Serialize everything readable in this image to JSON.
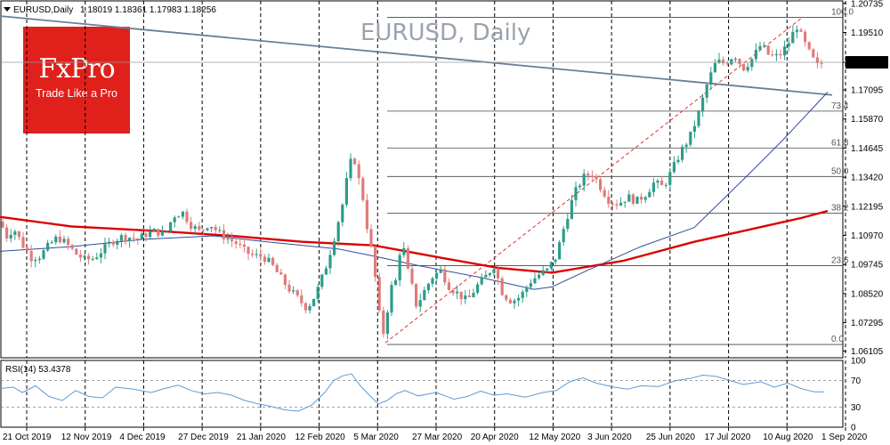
{
  "header": {
    "symbol": "EURUSD,Daily",
    "ohlc": "1.18019 1.18361 1.17983 1.18256",
    "watermark": "EURUSD, Daily"
  },
  "logo": {
    "brand": "FxPro",
    "tagline": "Trade Like a Pro"
  },
  "rsi_panel": {
    "label": "RSI(14) 53.4378"
  },
  "colors": {
    "up": "#2e9c8a",
    "down": "#e07b7b",
    "ma_slow": "#dd0000",
    "ma_fast": "#2a4f97",
    "trendline": "#6a7f95",
    "fib": "#444444",
    "dashed_trend": "#e03030",
    "rsi": "#5b9bd5",
    "logo_bg": "#e0201b"
  },
  "chart_data": [
    {
      "type": "candlestick",
      "title": "EURUSD, Daily",
      "ylim": [
        1.0582,
        1.2084
      ],
      "yticks": [
        "1.20735",
        "1.19510",
        "1.18256",
        "1.17095",
        "1.15870",
        "1.14645",
        "1.13420",
        "1.12195",
        "1.10970",
        "1.09745",
        "1.08520",
        "1.07295",
        "1.06105"
      ],
      "current_price": "1.18256",
      "x_labels": [
        "21 Oct 2019",
        "12 Nov 2019",
        "4 Dec 2019",
        "27 Dec 2019",
        "21 Jan 2020",
        "12 Feb 2020",
        "5 Mar 2020",
        "27 Mar 2020",
        "20 Apr 2020",
        "12 May 2020",
        "3 Jun 2020",
        "25 Jun 2020",
        "17 Jul 2020",
        "10 Aug 2020",
        "1 Sep 2020"
      ],
      "close_series": [
        [
          0,
          1.1155
        ],
        [
          8,
          1.109
        ],
        [
          15,
          1.113
        ],
        [
          25,
          1.106
        ],
        [
          35,
          1.1005
        ],
        [
          45,
          1.101
        ],
        [
          55,
          1.1055
        ],
        [
          65,
          1.109
        ],
        [
          75,
          1.106
        ],
        [
          85,
          1.102
        ],
        [
          95,
          1.0995
        ],
        [
          105,
          1.1
        ],
        [
          115,
          1.1035
        ],
        [
          125,
          1.107
        ],
        [
          135,
          1.109
        ],
        [
          145,
          1.109
        ],
        [
          155,
          1.108
        ],
        [
          165,
          1.1105
        ],
        [
          175,
          1.1115
        ],
        [
          185,
          1.11
        ],
        [
          195,
          1.118
        ],
        [
          205,
          1.1195
        ],
        [
          215,
          1.114
        ],
        [
          225,
          1.111
        ],
        [
          235,
          1.115
        ],
        [
          245,
          1.111
        ],
        [
          255,
          1.1085
        ],
        [
          265,
          1.1065
        ],
        [
          275,
          1.103
        ],
        [
          285,
          1.101
        ],
        [
          295,
          1.101
        ],
        [
          305,
          1.0975
        ],
        [
          315,
          1.092
        ],
        [
          325,
          1.087
        ],
        [
          335,
          1.083
        ],
        [
          345,
          1.079
        ],
        [
          355,
          1.085
        ],
        [
          365,
          1.095
        ],
        [
          375,
          1.108
        ],
        [
          385,
          1.123
        ],
        [
          392,
          1.138
        ],
        [
          397,
          1.144
        ],
        [
          402,
          1.135
        ],
        [
          408,
          1.125
        ],
        [
          413,
          1.112
        ],
        [
          418,
          1.102
        ],
        [
          423,
          1.088
        ],
        [
          428,
          1.07
        ],
        [
          433,
          1.068
        ],
        [
          438,
          1.09
        ],
        [
          443,
          1.085
        ],
        [
          448,
          1.102
        ],
        [
          453,
          1.105
        ],
        [
          458,
          1.095
        ],
        [
          463,
          1.088
        ],
        [
          468,
          1.08
        ],
        [
          475,
          1.085
        ],
        [
          485,
          1.092
        ],
        [
          495,
          1.095
        ],
        [
          505,
          1.088
        ],
        [
          515,
          1.085
        ],
        [
          525,
          1.082
        ],
        [
          535,
          1.088
        ],
        [
          545,
          1.092
        ],
        [
          555,
          1.097
        ],
        [
          565,
          1.085
        ],
        [
          575,
          1.082
        ],
        [
          585,
          1.084
        ],
        [
          595,
          1.09
        ],
        [
          605,
          1.093
        ],
        [
          615,
          1.095
        ],
        [
          625,
          1.101
        ],
        [
          635,
          1.115
        ],
        [
          645,
          1.127
        ],
        [
          655,
          1.134
        ],
        [
          665,
          1.136
        ],
        [
          675,
          1.13
        ],
        [
          685,
          1.124
        ],
        [
          695,
          1.123
        ],
        [
          705,
          1.126
        ],
        [
          715,
          1.124
        ],
        [
          725,
          1.127
        ],
        [
          735,
          1.132
        ],
        [
          745,
          1.13
        ],
        [
          755,
          1.137
        ],
        [
          765,
          1.145
        ],
        [
          775,
          1.151
        ],
        [
          785,
          1.161
        ],
        [
          795,
          1.174
        ],
        [
          805,
          1.183
        ],
        [
          815,
          1.182
        ],
        [
          825,
          1.186
        ],
        [
          835,
          1.18
        ],
        [
          845,
          1.184
        ],
        [
          855,
          1.19
        ],
        [
          865,
          1.185
        ],
        [
          875,
          1.185
        ],
        [
          885,
          1.19
        ],
        [
          895,
          1.198
        ],
        [
          902,
          1.192
        ],
        [
          910,
          1.186
        ],
        [
          918,
          1.181
        ],
        [
          926,
          1.1826
        ]
      ],
      "ma_slow": [
        [
          0,
          1.1175
        ],
        [
          80,
          1.1135
        ],
        [
          180,
          1.1115
        ],
        [
          260,
          1.1095
        ],
        [
          340,
          1.107
        ],
        [
          420,
          1.1055
        ],
        [
          500,
          1.1
        ],
        [
          560,
          1.096
        ],
        [
          620,
          1.094
        ],
        [
          700,
          1.099
        ],
        [
          780,
          1.107
        ],
        [
          840,
          1.112
        ],
        [
          900,
          1.117
        ],
        [
          930,
          1.12
        ]
      ],
      "ma_fast": [
        [
          0,
          1.103
        ],
        [
          80,
          1.105
        ],
        [
          160,
          1.108
        ],
        [
          240,
          1.1095
        ],
        [
          300,
          1.107
        ],
        [
          380,
          1.104
        ],
        [
          420,
          1.101
        ],
        [
          470,
          1.097
        ],
        [
          540,
          1.092
        ],
        [
          600,
          1.087
        ],
        [
          620,
          1.088
        ],
        [
          660,
          1.095
        ],
        [
          720,
          1.105
        ],
        [
          780,
          1.113
        ],
        [
          840,
          1.135
        ],
        [
          880,
          1.15
        ],
        [
          910,
          1.162
        ],
        [
          930,
          1.17
        ]
      ],
      "fibonacci": [
        {
          "level": "100.0",
          "price": 1.2015
        },
        {
          "level": "73.4",
          "price": 1.162
        },
        {
          "level": "61.8",
          "price": 1.1465
        },
        {
          "level": "50.0",
          "price": 1.1345
        },
        {
          "level": "38.2",
          "price": 1.119
        },
        {
          "level": "23.6",
          "price": 1.097
        },
        {
          "level": "0.0",
          "price": 1.0638
        }
      ]
    },
    {
      "type": "line",
      "title": "RSI(14) 53.4378",
      "ylim": [
        0,
        100
      ],
      "yticks": [
        "100",
        "70",
        "30",
        "0"
      ],
      "levels": [
        70,
        30
      ],
      "values": [
        [
          0,
          58
        ],
        [
          15,
          60
        ],
        [
          25,
          52
        ],
        [
          40,
          62
        ],
        [
          55,
          46
        ],
        [
          70,
          40
        ],
        [
          85,
          55
        ],
        [
          100,
          46
        ],
        [
          115,
          44
        ],
        [
          130,
          60
        ],
        [
          150,
          57
        ],
        [
          170,
          52
        ],
        [
          185,
          58
        ],
        [
          200,
          63
        ],
        [
          215,
          55
        ],
        [
          230,
          50
        ],
        [
          245,
          52
        ],
        [
          260,
          48
        ],
        [
          275,
          40
        ],
        [
          290,
          35
        ],
        [
          305,
          31
        ],
        [
          320,
          26
        ],
        [
          335,
          24
        ],
        [
          350,
          33
        ],
        [
          365,
          52
        ],
        [
          375,
          70
        ],
        [
          385,
          77
        ],
        [
          395,
          80
        ],
        [
          405,
          62
        ],
        [
          415,
          48
        ],
        [
          425,
          35
        ],
        [
          435,
          40
        ],
        [
          445,
          50
        ],
        [
          455,
          55
        ],
        [
          470,
          47
        ],
        [
          490,
          52
        ],
        [
          510,
          42
        ],
        [
          525,
          46
        ],
        [
          540,
          54
        ],
        [
          555,
          48
        ],
        [
          570,
          50
        ],
        [
          590,
          45
        ],
        [
          610,
          52
        ],
        [
          625,
          55
        ],
        [
          640,
          68
        ],
        [
          655,
          74
        ],
        [
          670,
          66
        ],
        [
          690,
          60
        ],
        [
          705,
          57
        ],
        [
          720,
          62
        ],
        [
          740,
          61
        ],
        [
          760,
          70
        ],
        [
          775,
          73
        ],
        [
          790,
          78
        ],
        [
          805,
          76
        ],
        [
          820,
          70
        ],
        [
          835,
          64
        ],
        [
          855,
          68
        ],
        [
          870,
          60
        ],
        [
          885,
          66
        ],
        [
          900,
          58
        ],
        [
          915,
          53
        ],
        [
          926,
          53
        ]
      ]
    }
  ]
}
